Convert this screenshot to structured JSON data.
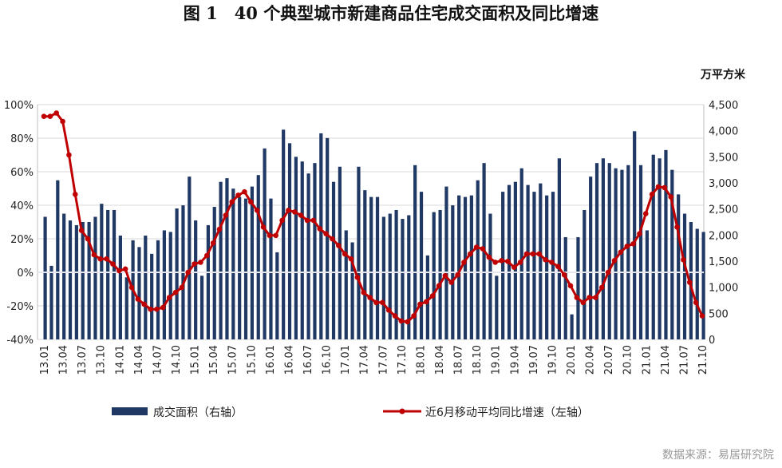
{
  "chart_data": {
    "type": "bar+line",
    "title": "图 1　40 个典型城市新建商品住宅成交面积及同比增速",
    "right_unit": "万平方米",
    "source": "数据来源：易居研究院",
    "colors": {
      "bar": "#1f3864",
      "line": "#c00000",
      "grid": "#d9d9d9"
    },
    "left_axis": {
      "range": [
        -40,
        100
      ],
      "ticks": [
        "100%",
        "80%",
        "60%",
        "40%",
        "20%",
        "0%",
        "-20%",
        "-40%"
      ]
    },
    "right_axis": {
      "range": [
        0,
        4500
      ],
      "ticks": [
        "4,500",
        "4,000",
        "3,500",
        "3,000",
        "2,500",
        "2,000",
        "1,500",
        "1,000",
        "500",
        "0"
      ]
    },
    "x_tick_labels": [
      "13.01",
      "13.04",
      "13.07",
      "13.10",
      "14.01",
      "14.04",
      "14.07",
      "14.10",
      "15.01",
      "15.04",
      "15.07",
      "15.10",
      "16.01",
      "16.04",
      "16.07",
      "16.10",
      "17.01",
      "17.04",
      "17.07",
      "17.10",
      "18.01",
      "18.04",
      "18.07",
      "18.10",
      "19.01",
      "19.04",
      "19.07",
      "19.10",
      "20.01",
      "20.04",
      "20.07",
      "20.10",
      "21.01",
      "21.04",
      "21.07",
      "21.10"
    ],
    "legend": [
      {
        "name": "成交面积（右轴）",
        "type": "bar"
      },
      {
        "name": "近6月移动平均同比增速（左轴）",
        "type": "line"
      }
    ],
    "series": [
      {
        "name": "成交面积（右轴）",
        "axis": "right",
        "values": [
          2350,
          1410,
          3050,
          2410,
          2280,
          2190,
          2250,
          2250,
          2350,
          2600,
          2480,
          2480,
          1990,
          1190,
          1900,
          1770,
          1990,
          1640,
          1900,
          2090,
          2060,
          2510,
          2570,
          3120,
          2280,
          1220,
          2190,
          2540,
          3020,
          3090,
          2890,
          2730,
          2700,
          2930,
          3150,
          3660,
          2700,
          1670,
          4020,
          3760,
          3500,
          3410,
          3180,
          3380,
          3950,
          3860,
          3020,
          3310,
          2090,
          1860,
          3310,
          2860,
          2730,
          2730,
          2350,
          2410,
          2480,
          2310,
          2380,
          3340,
          2830,
          1610,
          2440,
          2480,
          2930,
          2570,
          2760,
          2730,
          2760,
          3050,
          3380,
          2410,
          1220,
          2830,
          2960,
          3020,
          3280,
          2960,
          2830,
          2990,
          2760,
          2830,
          3470,
          1960,
          480,
          1960,
          2480,
          3120,
          3380,
          3470,
          3380,
          3280,
          3250,
          3340,
          3990,
          3340,
          2090,
          3540,
          3470,
          3630,
          3250,
          2780,
          2410,
          2250,
          2120,
          2060
        ]
      },
      {
        "name": "近6月移动平均同比增速（左轴）",
        "axis": "left",
        "unit": "%",
        "values": [
          93,
          93,
          95,
          90,
          70,
          46.5,
          25,
          20,
          10.5,
          8,
          8,
          5,
          1,
          2,
          -9,
          -16,
          -19,
          -22,
          -22,
          -21,
          -15,
          -12,
          -9,
          0,
          5,
          6,
          10,
          17.5,
          25.7,
          34,
          42,
          46,
          48,
          42,
          37,
          27,
          22,
          22,
          31,
          37,
          36,
          34,
          31,
          31,
          26,
          23,
          20,
          16,
          11,
          8,
          -3,
          -12,
          -15,
          -18,
          -18,
          -22.5,
          -26,
          -29,
          -29.5,
          -26,
          -19,
          -17.5,
          -14,
          -8,
          -2,
          -6,
          -1.5,
          6,
          11,
          15,
          14,
          9,
          6,
          7,
          6.5,
          3,
          6,
          11,
          11,
          11,
          7.5,
          6,
          3.5,
          -1.5,
          -8,
          -15,
          -18,
          -15,
          -15,
          -9,
          0,
          7,
          12,
          15.5,
          17,
          23,
          35,
          46.5,
          51,
          50.5,
          45,
          27,
          7.5,
          -6,
          -18,
          -26
        ]
      }
    ]
  }
}
